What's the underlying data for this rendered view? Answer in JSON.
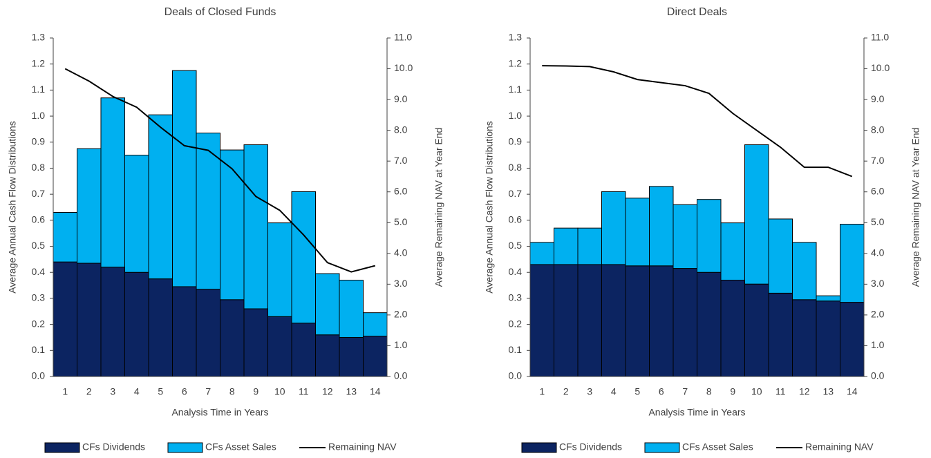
{
  "chart_data": [
    {
      "type": "bar",
      "stacked": true,
      "title": "Deals of Closed Funds",
      "categories": [
        "1",
        "2",
        "3",
        "4",
        "5",
        "6",
        "7",
        "8",
        "9",
        "10",
        "11",
        "12",
        "13",
        "14"
      ],
      "xlabel": "Analysis Time in Years",
      "ylabel": "Average Annual Cash Flow Distributions",
      "y2label": "Average Remaining NAV at Year End",
      "ylim": [
        0,
        1.3
      ],
      "yticks": [
        {
          "value": 0,
          "label": "0.0"
        },
        0.1,
        0.2,
        0.3,
        0.4,
        0.5,
        0.6,
        0.7,
        0.8,
        0.9,
        {
          "value": 1,
          "label": "1.0"
        },
        1.1,
        1.2,
        1.3
      ],
      "y2lim": [
        0,
        11
      ],
      "y2ticks": [
        {
          "value": 0,
          "label": "0.0"
        },
        {
          "value": 1,
          "label": "1.0"
        },
        {
          "value": 2,
          "label": "2.0"
        },
        {
          "value": 3,
          "label": "3.0"
        },
        {
          "value": 4,
          "label": "4.0"
        },
        {
          "value": 5,
          "label": "5.0"
        },
        {
          "value": 6,
          "label": "6.0"
        },
        {
          "value": 7,
          "label": "7.0"
        },
        {
          "value": 8,
          "label": "8.0"
        },
        {
          "value": 9,
          "label": "9.0"
        },
        {
          "value": 10,
          "label": "10.0"
        },
        {
          "value": 11,
          "label": "11.0"
        }
      ],
      "legend": "bottom",
      "series": [
        {
          "name": "CFs Dividends",
          "color": "#0c2461",
          "values": [
            0.44,
            0.435,
            0.42,
            0.4,
            0.375,
            0.345,
            0.335,
            0.295,
            0.26,
            0.23,
            0.205,
            0.16,
            0.15,
            0.155
          ]
        },
        {
          "name": "CFs Asset Sales",
          "color": "#00b0f0",
          "values": [
            0.19,
            0.44,
            0.65,
            0.45,
            0.63,
            0.83,
            0.6,
            0.575,
            0.63,
            0.36,
            0.505,
            0.235,
            0.22,
            0.09
          ]
        },
        {
          "name": "Remaining NAV",
          "color": "#000000",
          "type": "line",
          "axis": "y2",
          "values": [
            10.0,
            9.6,
            9.1,
            8.75,
            8.1,
            7.5,
            7.35,
            6.75,
            5.85,
            5.4,
            4.6,
            3.7,
            3.4,
            3.6
          ]
        }
      ]
    },
    {
      "type": "bar",
      "stacked": true,
      "title": "Direct Deals",
      "categories": [
        "1",
        "2",
        "3",
        "4",
        "5",
        "6",
        "7",
        "8",
        "9",
        "10",
        "11",
        "12",
        "13",
        "14"
      ],
      "xlabel": "Analysis Time in Years",
      "ylabel": "Average Annual Cash Flow Distributions",
      "y2label": "Average Remaining NAV at Year End",
      "ylim": [
        0,
        1.3
      ],
      "yticks": [
        {
          "value": 0,
          "label": "0.0"
        },
        0.1,
        0.2,
        0.3,
        0.4,
        0.5,
        0.6,
        0.7,
        0.8,
        0.9,
        {
          "value": 1,
          "label": "1.0"
        },
        1.1,
        1.2,
        1.3
      ],
      "y2lim": [
        0,
        11
      ],
      "y2ticks": [
        {
          "value": 0,
          "label": "0.0"
        },
        {
          "value": 1,
          "label": "1.0"
        },
        {
          "value": 2,
          "label": "2.0"
        },
        {
          "value": 3,
          "label": "3.0"
        },
        {
          "value": 4,
          "label": "4.0"
        },
        {
          "value": 5,
          "label": "5.0"
        },
        {
          "value": 6,
          "label": "6.0"
        },
        {
          "value": 7,
          "label": "7.0"
        },
        {
          "value": 8,
          "label": "8.0"
        },
        {
          "value": 9,
          "label": "9.0"
        },
        {
          "value": 10,
          "label": "10.0"
        },
        {
          "value": 11,
          "label": "11.0"
        }
      ],
      "legend": "bottom",
      "series": [
        {
          "name": "CFs Dividends",
          "color": "#0c2461",
          "values": [
            0.43,
            0.43,
            0.43,
            0.43,
            0.425,
            0.425,
            0.415,
            0.4,
            0.37,
            0.355,
            0.32,
            0.295,
            0.29,
            0.285
          ]
        },
        {
          "name": "CFs Asset Sales",
          "color": "#00b0f0",
          "values": [
            0.085,
            0.14,
            0.14,
            0.28,
            0.26,
            0.305,
            0.245,
            0.28,
            0.22,
            0.535,
            0.285,
            0.22,
            0.02,
            0.3
          ]
        },
        {
          "name": "Remaining NAV",
          "color": "#000000",
          "type": "line",
          "axis": "y2",
          "values": [
            10.1,
            10.09,
            10.07,
            9.9,
            9.65,
            9.55,
            9.45,
            9.2,
            8.55,
            8.0,
            7.45,
            6.8,
            6.8,
            6.5
          ]
        }
      ]
    }
  ]
}
